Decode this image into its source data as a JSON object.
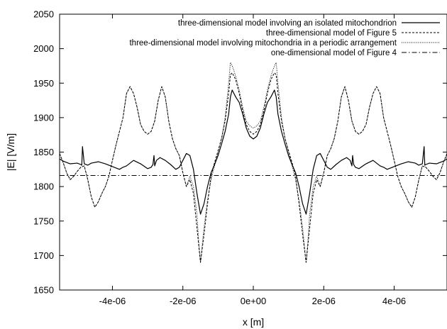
{
  "chart_data": {
    "type": "line",
    "title": "",
    "xlabel": "x [m]",
    "ylabel": "|E| [V/m]",
    "xlim": [
      -5.5e-06,
      5.5e-06
    ],
    "ylim": [
      1650,
      2050
    ],
    "grid": false,
    "legend_position": "top-right",
    "x_ticks": [
      -4e-06,
      -2e-06,
      0,
      2e-06,
      4e-06
    ],
    "x_tick_labels": [
      "-4e-06",
      "-2e-06",
      "0e+00",
      "2e-06",
      "4e-06"
    ],
    "y_ticks": [
      1650,
      1700,
      1750,
      1800,
      1850,
      1900,
      1950,
      2000,
      2050
    ],
    "y_tick_labels": [
      "1650",
      "1700",
      "1750",
      "1800",
      "1850",
      "1900",
      "1950",
      "2000",
      "2050"
    ],
    "series": [
      {
        "name": "three-dimensional model involving an isolated mitochondrion",
        "style": "solid",
        "x": [
          0,
          1e-07,
          2e-07,
          3e-07,
          4e-07,
          5e-07,
          5.5e-07,
          6e-07,
          6.5e-07,
          7e-07,
          8e-07,
          9e-07,
          1e-06,
          1.1e-06,
          1.2e-06,
          1.3e-06,
          1.4e-06,
          1.5e-06,
          1.6e-06,
          1.7e-06,
          1.8e-06,
          1.9e-06,
          2e-06,
          2.1e-06,
          2.2e-06,
          2.35e-06,
          2.5e-06,
          2.65e-06,
          2.75e-06,
          2.8e-06,
          2.82e-06,
          2.85e-06,
          2.9e-06,
          3e-06,
          3.2e-06,
          3.4e-06,
          3.5e-06,
          3.6e-06,
          3.7e-06,
          3.8e-06,
          4e-06,
          4.2e-06,
          4.4e-06,
          4.6e-06,
          4.7e-06,
          4.8e-06,
          4.85e-06,
          4.87e-06,
          4.9e-06,
          5e-06,
          5.2e-06,
          5.4e-06,
          5.5e-06
        ],
        "y": [
          1869,
          1873,
          1885,
          1905,
          1922,
          1930,
          1935,
          1940,
          1930,
          1905,
          1880,
          1862,
          1845,
          1832,
          1820,
          1800,
          1775,
          1760,
          1790,
          1825,
          1845,
          1848,
          1838,
          1828,
          1825,
          1832,
          1838,
          1842,
          1838,
          1830,
          1845,
          1832,
          1828,
          1826,
          1833,
          1838,
          1834,
          1830,
          1828,
          1825,
          1829,
          1833,
          1836,
          1834,
          1831,
          1833,
          1858,
          1831,
          1832,
          1834,
          1833,
          1837,
          1840
        ]
      },
      {
        "name": "three-dimensional model of Figure 5",
        "style": "dashed",
        "x": [
          0,
          1e-07,
          2e-07,
          3e-07,
          4e-07,
          5e-07,
          6e-07,
          6.5e-07,
          7e-07,
          8e-07,
          9e-07,
          1e-06,
          1.1e-06,
          1.2e-06,
          1.3e-06,
          1.4e-06,
          1.5e-06,
          1.6e-06,
          1.7e-06,
          1.8e-06,
          1.9e-06,
          2e-06,
          2.1e-06,
          2.2e-06,
          2.3e-06,
          2.4e-06,
          2.5e-06,
          2.6e-06,
          2.7e-06,
          2.8e-06,
          2.9e-06,
          3e-06,
          3.1e-06,
          3.2e-06,
          3.3e-06,
          3.4e-06,
          3.5e-06,
          3.6e-06,
          3.7e-06,
          3.8e-06,
          3.9e-06,
          4e-06,
          4.1e-06,
          4.2e-06,
          4.3e-06,
          4.4e-06,
          4.5e-06,
          4.6e-06,
          4.7e-06,
          4.8e-06,
          4.9e-06,
          5e-06,
          5.1e-06,
          5.2e-06,
          5.3e-06,
          5.4e-06,
          5.5e-06
        ],
        "y": [
          1876,
          1880,
          1890,
          1910,
          1935,
          1955,
          1965,
          1962,
          1935,
          1895,
          1870,
          1852,
          1835,
          1815,
          1775,
          1730,
          1690,
          1740,
          1790,
          1810,
          1800,
          1820,
          1845,
          1855,
          1870,
          1895,
          1930,
          1945,
          1925,
          1895,
          1880,
          1876,
          1880,
          1890,
          1915,
          1935,
          1945,
          1935,
          1900,
          1880,
          1860,
          1838,
          1815,
          1800,
          1790,
          1778,
          1770,
          1785,
          1810,
          1830,
          1828,
          1822,
          1815,
          1810,
          1820,
          1835,
          1848
        ]
      },
      {
        "name": "three-dimensional model involving mitochondria in a periodic arrangement",
        "style": "dotted",
        "x": [
          0,
          1e-07,
          2e-07,
          3e-07,
          4e-07,
          5e-07,
          5.5e-07,
          6e-07,
          6.5e-07,
          7e-07,
          8e-07,
          9e-07,
          1e-06,
          1.1e-06,
          1.2e-06,
          1.3e-06,
          1.4e-06,
          1.45e-06,
          1.5e-06,
          1.55e-06,
          1.6e-06,
          1.7e-06,
          1.8e-06,
          1.9e-06,
          2e-06,
          2.1e-06,
          2.2e-06,
          2.3e-06,
          2.4e-06,
          2.5e-06,
          2.6e-06,
          2.7e-06,
          2.8e-06,
          2.9e-06,
          3e-06,
          3.1e-06,
          3.2e-06,
          3.3e-06,
          3.4e-06,
          3.5e-06,
          3.6e-06,
          3.7e-06,
          3.8e-06,
          3.9e-06,
          4e-06,
          4.1e-06,
          4.2e-06,
          4.3e-06,
          4.4e-06,
          4.5e-06,
          4.6e-06,
          4.7e-06,
          4.8e-06,
          4.9e-06,
          5e-06,
          5.1e-06,
          5.2e-06,
          5.3e-06,
          5.4e-06,
          5.5e-06
        ],
        "y": [
          1885,
          1888,
          1895,
          1915,
          1940,
          1960,
          1968,
          1975,
          1980,
          1950,
          1900,
          1870,
          1850,
          1830,
          1810,
          1780,
          1740,
          1715,
          1690,
          1720,
          1760,
          1800,
          1815,
          1800,
          1820,
          1845,
          1855,
          1870,
          1895,
          1930,
          1945,
          1925,
          1895,
          1880,
          1876,
          1880,
          1890,
          1915,
          1935,
          1945,
          1935,
          1900,
          1880,
          1860,
          1838,
          1815,
          1800,
          1790,
          1778,
          1770,
          1785,
          1810,
          1830,
          1828,
          1822,
          1815,
          1810,
          1820,
          1835,
          1848
        ]
      },
      {
        "name": "one-dimensional model of Figure 4",
        "style": "dashdot",
        "x": [
          -5.5e-06,
          5.5e-06
        ],
        "y": [
          1816,
          1816
        ]
      }
    ]
  }
}
